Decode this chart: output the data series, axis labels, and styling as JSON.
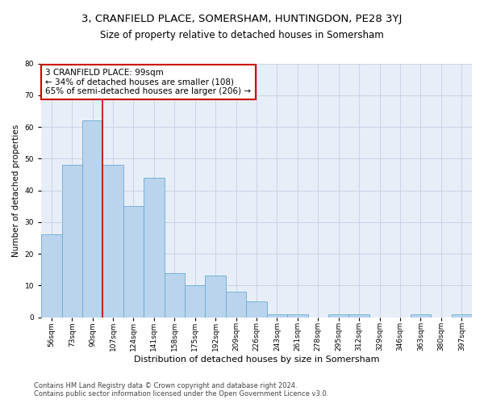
{
  "title1": "3, CRANFIELD PLACE, SOMERSHAM, HUNTINGDON, PE28 3YJ",
  "title2": "Size of property relative to detached houses in Somersham",
  "xlabel": "Distribution of detached houses by size in Somersham",
  "ylabel": "Number of detached properties",
  "bar_labels": [
    "56sqm",
    "73sqm",
    "90sqm",
    "107sqm",
    "124sqm",
    "141sqm",
    "158sqm",
    "175sqm",
    "192sqm",
    "209sqm",
    "226sqm",
    "243sqm",
    "261sqm",
    "278sqm",
    "295sqm",
    "312sqm",
    "329sqm",
    "346sqm",
    "363sqm",
    "380sqm",
    "397sqm"
  ],
  "bar_values": [
    26,
    48,
    62,
    48,
    35,
    44,
    14,
    10,
    13,
    8,
    5,
    1,
    1,
    0,
    1,
    1,
    0,
    0,
    1,
    0,
    1
  ],
  "bar_color": "#bad4ed",
  "bar_edgecolor": "#6aaad4",
  "bar_linewidth": 0.6,
  "vline_x": 2.5,
  "vline_color": "#cc0000",
  "vline_linewidth": 1.2,
  "annotation_text": "3 CRANFIELD PLACE: 99sqm\n← 34% of detached houses are smaller (108)\n65% of semi-detached houses are larger (206) →",
  "annotation_box_edgecolor": "#cc0000",
  "annotation_box_facecolor": "white",
  "ylim": [
    0,
    80
  ],
  "yticks": [
    0,
    10,
    20,
    30,
    40,
    50,
    60,
    70,
    80
  ],
  "grid_color": "#c8d4e8",
  "background_color": "#e8eef8",
  "footer1": "Contains HM Land Registry data © Crown copyright and database right 2024.",
  "footer2": "Contains public sector information licensed under the Open Government Licence v3.0.",
  "title1_fontsize": 9.5,
  "title2_fontsize": 8.5,
  "xlabel_fontsize": 8,
  "ylabel_fontsize": 7.5,
  "tick_fontsize": 6.5,
  "annotation_fontsize": 7.5,
  "footer_fontsize": 6
}
